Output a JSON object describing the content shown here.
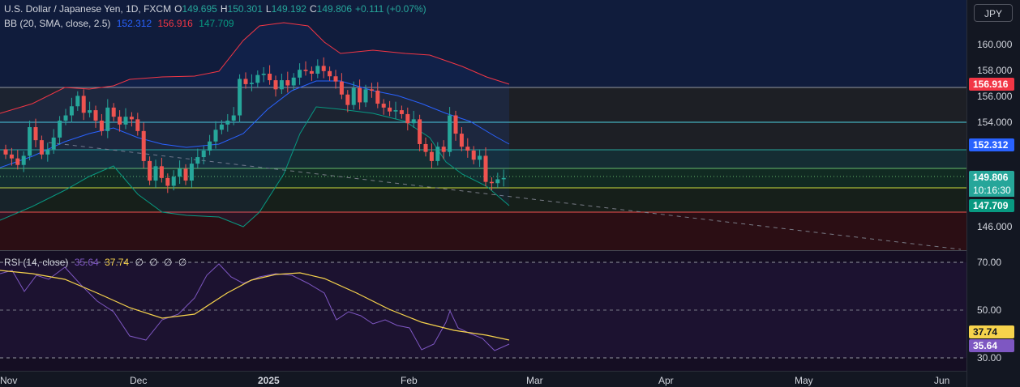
{
  "header": {
    "symbol": "U.S. Dollar / Japanese Yen, 1D, FXCM",
    "open_label": "O",
    "open": "149.695",
    "high_label": "H",
    "high": "150.301",
    "low_label": "L",
    "low": "149.192",
    "close_label": "C",
    "close": "149.806",
    "change": "+0.111 (+0.07%)"
  },
  "bb": {
    "title": "BB (20, SMA, close, 2.5)",
    "basis": "152.312",
    "upper": "156.916",
    "lower": "147.709"
  },
  "rsi": {
    "title": "RSI (14, close)",
    "value": "35.64",
    "ma": "37.74",
    "extra": [
      "∅",
      "∅",
      "∅",
      "∅"
    ]
  },
  "currency_button": "JPY",
  "price_ticks": [
    "160.000",
    "158.000",
    "156.000",
    "154.000",
    "146.000"
  ],
  "rsi_ticks": [
    "70.00",
    "50.00",
    "30.00"
  ],
  "price_labels": {
    "upper": "156.916",
    "basis": "152.312",
    "last": "149.806",
    "countdown": "10:16:30",
    "lower": "147.709"
  },
  "rsi_labels": {
    "ma": "37.74",
    "rsi": "35.64"
  },
  "time_labels": [
    "Nov",
    "Dec",
    "2025",
    "Feb",
    "Mar",
    "Apr",
    "May",
    "Jun"
  ],
  "colors": {
    "up": "#26a69a",
    "down": "#ef5350",
    "bb_upper": "#f23645",
    "bb_basis": "#2962ff",
    "bb_lower": "#089981",
    "rsi_line": "#7e57c2",
    "rsi_ma": "#f7d34c"
  }
}
